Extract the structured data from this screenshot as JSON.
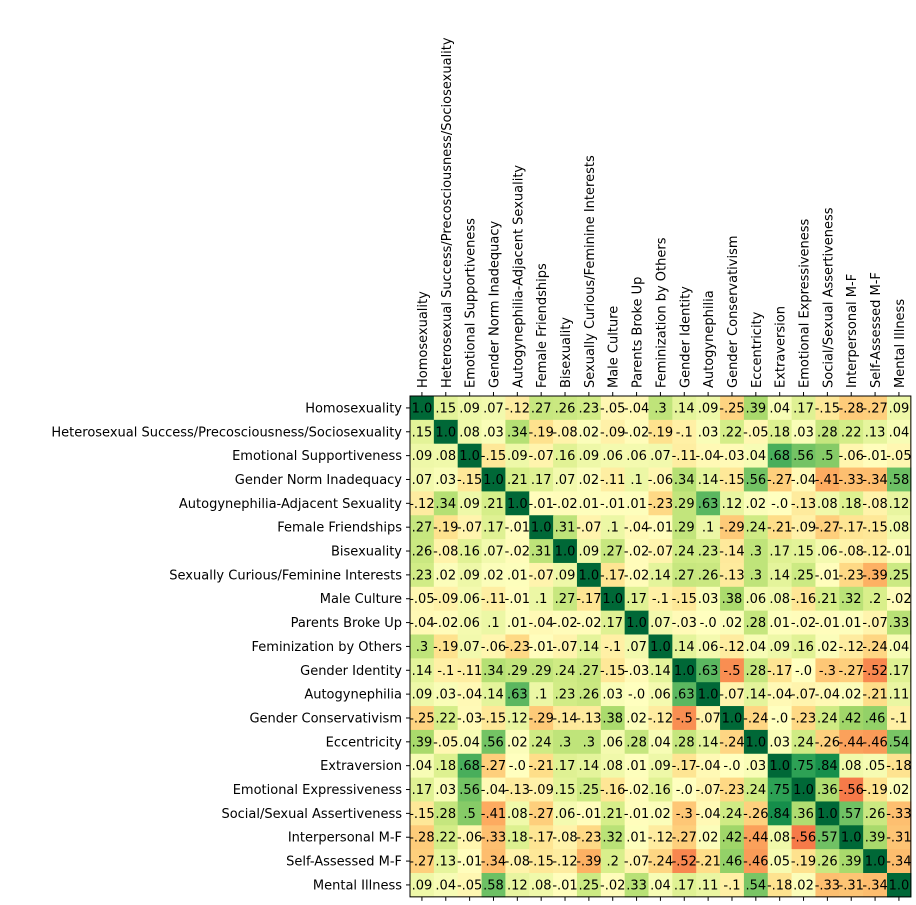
{
  "chart_data": {
    "type": "heatmap",
    "title": "",
    "xlabel": "",
    "ylabel": "",
    "color_scale": "RdYlGn",
    "value_range": [
      -1.0,
      1.0
    ],
    "labels": [
      "Homosexuality",
      "Heterosexual Success/Precosciousness/Sociosexuality",
      "Emotional Supportiveness",
      "Gender Norm Inadequacy",
      "Autogynephilia-Adjacent Sexuality",
      "Female Friendships",
      "Bisexuality",
      "Sexually Curious/Feminine Interests",
      "Male Culture",
      "Parents Broke Up",
      "Feminization by Others",
      "Gender Identity",
      "Autogynephilia",
      "Gender Conservativism",
      "Eccentricity",
      "Extraversion",
      "Emotional Expressiveness",
      "Social/Sexual Assertiveness",
      "Interpersonal M-F",
      "Self-Assessed M-F",
      "Mental Illness"
    ],
    "matrix": [
      [
        1.0,
        0.15,
        0.09,
        0.07,
        -0.12,
        0.27,
        0.26,
        0.23,
        -0.05,
        -0.04,
        0.3,
        0.14,
        0.09,
        -0.25,
        0.39,
        0.04,
        0.17,
        -0.15,
        -0.28,
        -0.27,
        0.09
      ],
      [
        0.15,
        1.0,
        0.08,
        0.03,
        0.34,
        -0.19,
        -0.08,
        0.02,
        -0.09,
        -0.02,
        -0.19,
        -0.1,
        0.03,
        0.22,
        -0.05,
        0.18,
        0.03,
        0.28,
        0.22,
        0.13,
        0.04
      ],
      [
        0.09,
        0.08,
        1.0,
        -0.15,
        0.09,
        -0.07,
        0.16,
        0.09,
        0.06,
        0.06,
        0.07,
        -0.11,
        -0.04,
        -0.03,
        0.04,
        0.68,
        0.56,
        0.5,
        -0.06,
        -0.01,
        -0.05
      ],
      [
        0.07,
        0.03,
        -0.15,
        1.0,
        0.21,
        0.17,
        0.07,
        0.02,
        -0.11,
        0.1,
        -0.06,
        0.34,
        0.14,
        -0.15,
        0.56,
        -0.27,
        -0.04,
        -0.41,
        -0.33,
        -0.34,
        0.58
      ],
      [
        -0.12,
        0.34,
        0.09,
        0.21,
        1.0,
        -0.01,
        -0.02,
        0.01,
        -0.01,
        0.01,
        -0.23,
        0.29,
        0.63,
        0.12,
        0.02,
        -0.0,
        -0.13,
        0.08,
        0.18,
        -0.08,
        0.12
      ],
      [
        0.27,
        -0.19,
        -0.07,
        0.17,
        -0.01,
        1.0,
        0.31,
        -0.07,
        0.1,
        -0.04,
        -0.01,
        0.29,
        0.1,
        -0.29,
        0.24,
        -0.21,
        -0.09,
        -0.27,
        -0.17,
        -0.15,
        0.08
      ],
      [
        0.26,
        -0.08,
        0.16,
        0.07,
        -0.02,
        0.31,
        1.0,
        0.09,
        0.27,
        -0.02,
        -0.07,
        0.24,
        0.23,
        -0.14,
        0.3,
        0.17,
        0.15,
        0.06,
        -0.08,
        -0.12,
        -0.01
      ],
      [
        0.23,
        0.02,
        0.09,
        0.02,
        0.01,
        -0.07,
        0.09,
        1.0,
        -0.17,
        -0.02,
        0.14,
        0.27,
        0.26,
        -0.13,
        0.3,
        0.14,
        0.25,
        -0.01,
        -0.23,
        -0.39,
        0.25
      ],
      [
        -0.05,
        -0.09,
        0.06,
        -0.11,
        -0.01,
        0.1,
        0.27,
        -0.17,
        1.0,
        0.17,
        -0.1,
        -0.15,
        0.03,
        0.38,
        0.06,
        0.08,
        -0.16,
        0.21,
        0.32,
        0.2,
        -0.02
      ],
      [
        -0.04,
        -0.02,
        0.06,
        0.1,
        0.01,
        -0.04,
        -0.02,
        -0.02,
        0.17,
        1.0,
        0.07,
        -0.03,
        -0.0,
        0.02,
        0.28,
        0.01,
        -0.02,
        -0.01,
        0.01,
        -0.07,
        0.33
      ],
      [
        0.3,
        -0.19,
        0.07,
        -0.06,
        -0.23,
        -0.01,
        -0.07,
        0.14,
        -0.1,
        0.07,
        1.0,
        0.14,
        0.06,
        -0.12,
        0.04,
        0.09,
        0.16,
        0.02,
        -0.12,
        -0.24,
        0.04
      ],
      [
        0.14,
        -0.1,
        -0.11,
        0.34,
        0.29,
        0.29,
        0.24,
        0.27,
        -0.15,
        -0.03,
        0.14,
        1.0,
        0.63,
        -0.5,
        0.28,
        -0.17,
        -0.0,
        -0.3,
        -0.27,
        -0.52,
        0.17
      ],
      [
        0.09,
        0.03,
        -0.04,
        0.14,
        0.63,
        0.1,
        0.23,
        0.26,
        0.03,
        -0.0,
        0.06,
        0.63,
        1.0,
        -0.07,
        0.14,
        -0.04,
        -0.07,
        -0.04,
        0.02,
        -0.21,
        0.11
      ],
      [
        -0.25,
        0.22,
        -0.03,
        -0.15,
        0.12,
        -0.29,
        -0.14,
        -0.13,
        0.38,
        0.02,
        -0.12,
        -0.5,
        -0.07,
        1.0,
        -0.24,
        -0.0,
        -0.23,
        0.24,
        0.42,
        0.46,
        -0.1
      ],
      [
        0.39,
        -0.05,
        0.04,
        0.56,
        0.02,
        0.24,
        0.3,
        0.3,
        0.06,
        0.28,
        0.04,
        0.28,
        0.14,
        -0.24,
        1.0,
        0.03,
        0.24,
        -0.26,
        -0.44,
        -0.46,
        0.54
      ],
      [
        0.04,
        0.18,
        0.68,
        -0.27,
        -0.0,
        -0.21,
        0.17,
        0.14,
        0.08,
        0.01,
        0.09,
        -0.17,
        -0.04,
        -0.0,
        0.03,
        1.0,
        0.75,
        0.84,
        0.08,
        0.05,
        -0.18
      ],
      [
        0.17,
        0.03,
        0.56,
        -0.04,
        -0.13,
        -0.09,
        0.15,
        0.25,
        -0.16,
        -0.02,
        0.16,
        -0.0,
        -0.07,
        -0.23,
        0.24,
        0.75,
        1.0,
        0.36,
        -0.56,
        -0.19,
        0.02
      ],
      [
        -0.15,
        0.28,
        0.5,
        -0.41,
        0.08,
        -0.27,
        0.06,
        -0.01,
        0.21,
        -0.01,
        0.02,
        -0.3,
        -0.04,
        0.24,
        -0.26,
        0.84,
        0.36,
        1.0,
        0.57,
        0.26,
        -0.33
      ],
      [
        -0.28,
        0.22,
        -0.06,
        -0.33,
        0.18,
        -0.17,
        -0.08,
        -0.23,
        0.32,
        0.01,
        -0.12,
        -0.27,
        0.02,
        0.42,
        -0.44,
        0.08,
        -0.56,
        0.57,
        1.0,
        0.39,
        -0.31
      ],
      [
        -0.27,
        0.13,
        -0.01,
        -0.34,
        -0.08,
        -0.15,
        -0.12,
        -0.39,
        0.2,
        -0.07,
        -0.24,
        -0.52,
        -0.21,
        0.46,
        -0.46,
        0.05,
        -0.19,
        0.26,
        0.39,
        1.0,
        -0.34
      ],
      [
        0.09,
        0.04,
        -0.05,
        0.58,
        0.12,
        0.08,
        -0.01,
        0.25,
        -0.02,
        0.33,
        0.04,
        0.17,
        0.11,
        -0.1,
        0.54,
        -0.18,
        0.02,
        -0.33,
        -0.31,
        -0.34,
        1.0
      ]
    ]
  }
}
